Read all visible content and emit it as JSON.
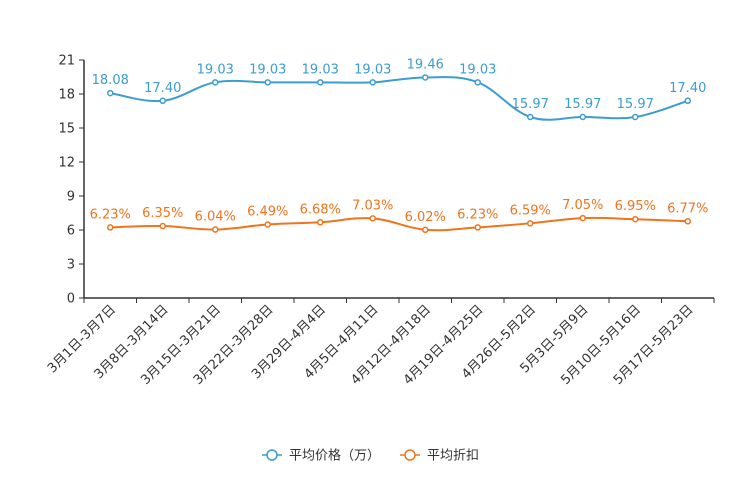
{
  "chart_data": {
    "type": "line",
    "categories": [
      "3月1日-3月7日",
      "3月8日-3月14日",
      "3月15日-3月21日",
      "3月22日-3月28日",
      "3月29日-4月4日",
      "4月5日-4月11日",
      "4月12日-4月18日",
      "4月19日-4月25日",
      "4月26日-5月2日",
      "5月3日-5月9日",
      "5月10日-5月16日",
      "5月17日-5月23日"
    ],
    "series": [
      {
        "name": "平均价格（万）",
        "color": "#3b9dd0",
        "values": [
          18.08,
          17.4,
          19.03,
          19.03,
          19.03,
          19.03,
          19.46,
          19.03,
          15.97,
          15.97,
          15.97,
          17.4
        ],
        "labels": [
          "18.08",
          "17.40",
          "19.03",
          "19.03",
          "19.03",
          "19.03",
          "19.46",
          "19.03",
          "15.97",
          "15.97",
          "15.97",
          "17.40"
        ]
      },
      {
        "name": "平均折扣",
        "color": "#f0741c",
        "values": [
          6.23,
          6.35,
          6.04,
          6.49,
          6.68,
          7.03,
          6.02,
          6.23,
          6.59,
          7.05,
          6.95,
          6.77
        ],
        "labels": [
          "6.23%",
          "6.35%",
          "6.04%",
          "6.49%",
          "6.68%",
          "7.03%",
          "6.02%",
          "6.23%",
          "6.59%",
          "7.05%",
          "6.95%",
          "6.77%"
        ]
      }
    ],
    "y_ticks": [
      "0",
      "3",
      "6",
      "9",
      "12",
      "15",
      "18",
      "21"
    ],
    "ylim": [
      0,
      21
    ],
    "title": "",
    "xlabel": "",
    "ylabel": "",
    "legend_position": "bottom-center"
  }
}
